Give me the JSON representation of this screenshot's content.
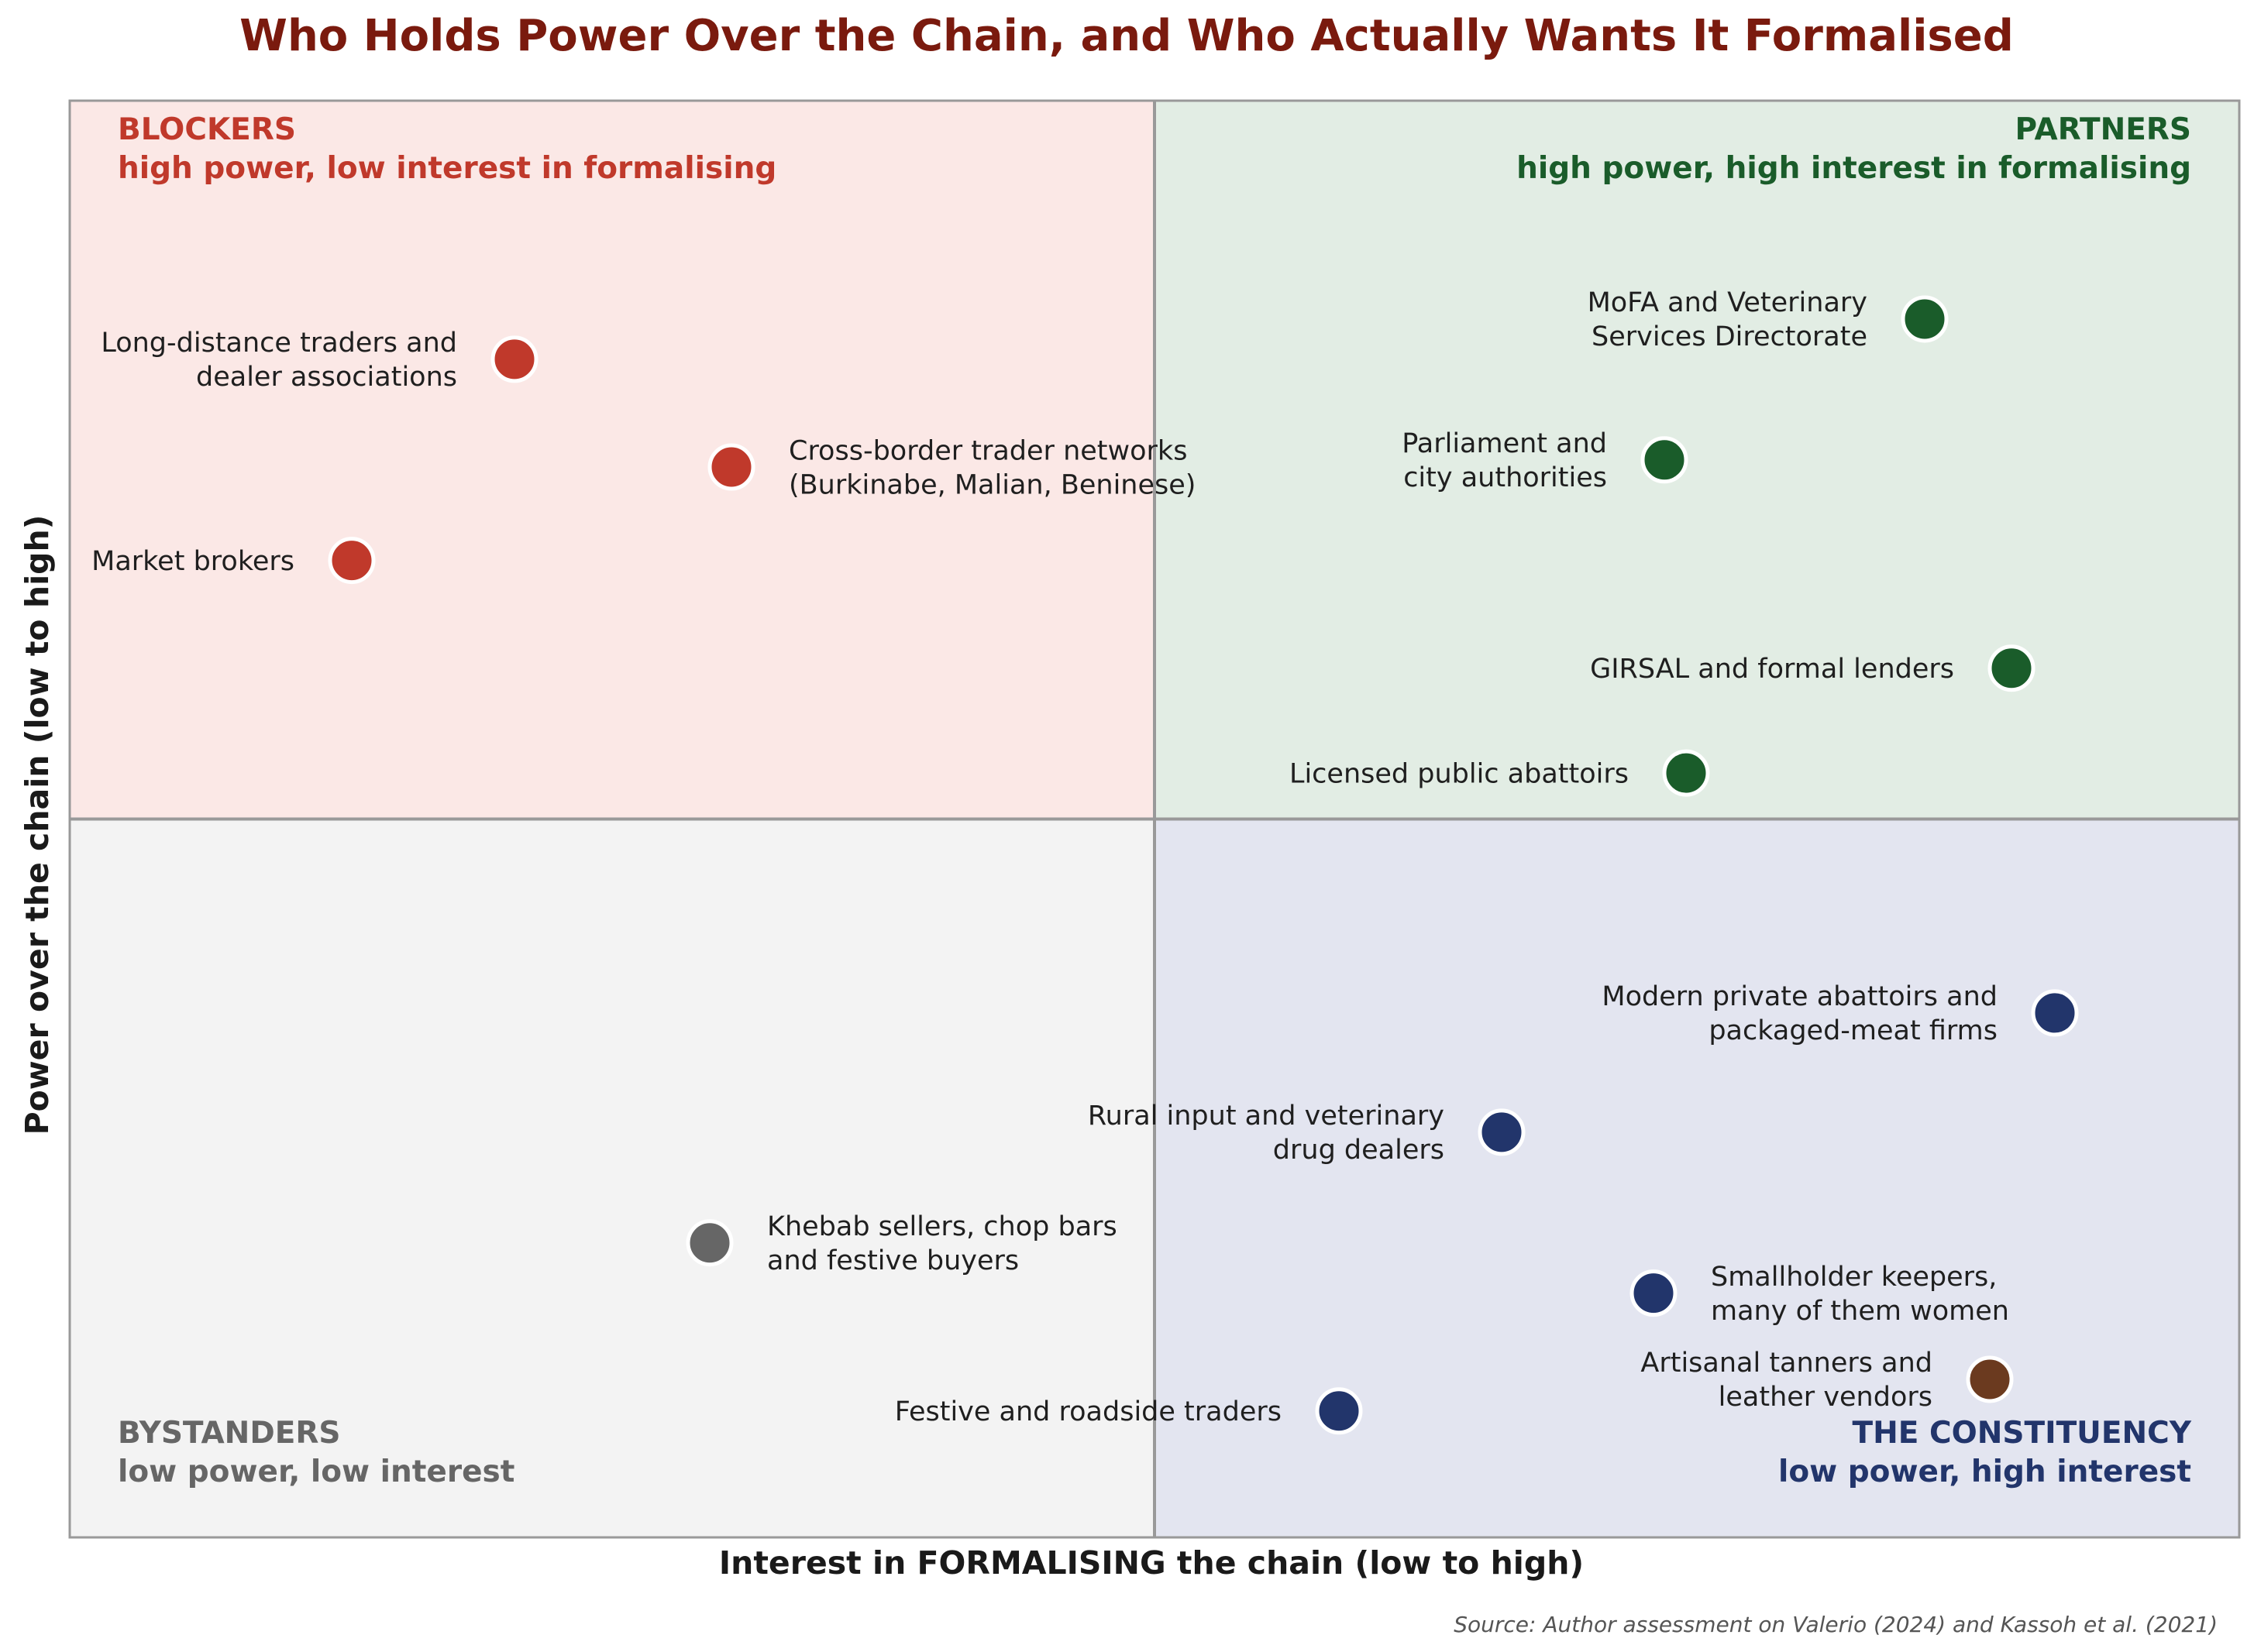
{
  "chart_data": {
    "type": "scatter",
    "title": "Who Holds Power Over the Chain, and Who Actually Wants It Formalised",
    "xlabel": "Interest in FORMALISING the chain  (low to high)",
    "ylabel": "Power over the chain  (low to high)",
    "source": "Source: Author assessment on Valerio (2024) and Kassoh et al. (2021)",
    "xlim": [
      0,
      10
    ],
    "ylim": [
      0,
      10
    ],
    "grid": false,
    "quadrants": [
      {
        "id": "blockers",
        "name": "BLOCKERS",
        "desc": "high power, low interest in formalising",
        "bg": "#fbe8e6",
        "text_color": "#c0392b"
      },
      {
        "id": "partners",
        "name": "PARTNERS",
        "desc": "high power, high interest in formalising",
        "bg": "#e2ede4",
        "text_color": "#1a5c2a"
      },
      {
        "id": "bystanders",
        "name": "BYSTANDERS",
        "desc": "low power, low interest",
        "bg": "#f3f3f3",
        "text_color": "#666666"
      },
      {
        "id": "constituency",
        "name": "THE CONSTITUENCY",
        "desc": "low power, high interest",
        "bg": "#e3e5f0",
        "text_color": "#22356b"
      }
    ],
    "points": [
      {
        "lines": [
          "Long-distance traders and",
          "dealer associations"
        ],
        "x": 2.05,
        "y": 8.2,
        "color": "#c0392b",
        "label_side": "left"
      },
      {
        "lines": [
          "Cross-border trader networks",
          "(Burkinabe, Malian, Beninese)"
        ],
        "x": 3.05,
        "y": 7.45,
        "color": "#c0392b",
        "label_side": "right"
      },
      {
        "lines": [
          "Market brokers"
        ],
        "x": 1.3,
        "y": 6.8,
        "color": "#c0392b",
        "label_side": "left"
      },
      {
        "lines": [
          "MoFA and Veterinary",
          "Services Directorate"
        ],
        "x": 8.55,
        "y": 8.48,
        "color": "#1a5c2a",
        "label_side": "left"
      },
      {
        "lines": [
          "Parliament and",
          "city authorities"
        ],
        "x": 7.35,
        "y": 7.5,
        "color": "#1a5c2a",
        "label_side": "left"
      },
      {
        "lines": [
          "GIRSAL and formal lenders"
        ],
        "x": 8.95,
        "y": 6.05,
        "color": "#1a5c2a",
        "label_side": "left"
      },
      {
        "lines": [
          "Licensed public abattoirs"
        ],
        "x": 7.45,
        "y": 5.32,
        "color": "#1a5c2a",
        "label_side": "left"
      },
      {
        "lines": [
          "Modern private abattoirs and",
          "packaged-meat firms"
        ],
        "x": 9.15,
        "y": 3.65,
        "color": "#22356b",
        "label_side": "left"
      },
      {
        "lines": [
          "Rural input and veterinary",
          "drug dealers"
        ],
        "x": 6.6,
        "y": 2.82,
        "color": "#22356b",
        "label_side": "left"
      },
      {
        "lines": [
          "Khebab sellers, chop bars",
          "and festive buyers"
        ],
        "x": 2.95,
        "y": 2.05,
        "color": "#666666",
        "label_side": "right"
      },
      {
        "lines": [
          "Smallholder keepers,",
          "many of them women"
        ],
        "x": 7.3,
        "y": 1.7,
        "color": "#22356b",
        "label_side": "right"
      },
      {
        "lines": [
          "Artisanal tanners and",
          "leather vendors"
        ],
        "x": 8.85,
        "y": 1.1,
        "color": "#6b3a1f",
        "label_side": "left"
      },
      {
        "lines": [
          "Festive and roadside traders"
        ],
        "x": 5.85,
        "y": 0.88,
        "color": "#22356b",
        "label_side": "left"
      }
    ]
  }
}
